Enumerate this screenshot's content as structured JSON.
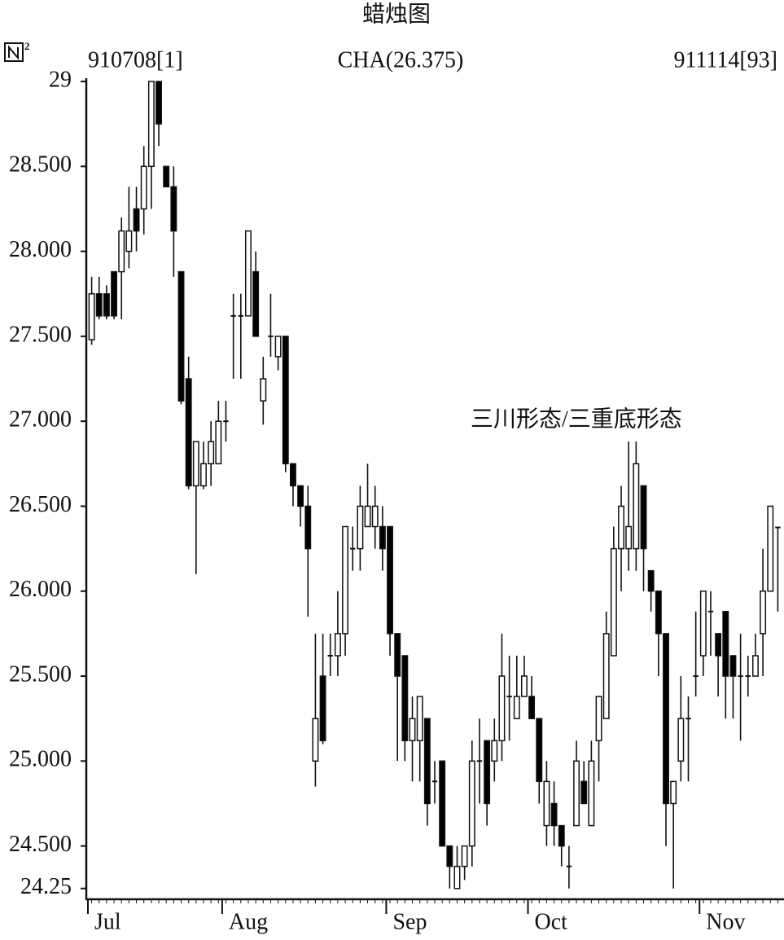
{
  "chart_data": {
    "type": "candlestick",
    "title": "蜡烛图",
    "header_left": "910708[1]",
    "header_center": "CHA(26.375)",
    "header_right": "911114[93]",
    "annotation": "三川形态/三重底形态",
    "categories": [
      "Jul",
      null,
      null,
      null,
      null,
      null,
      null,
      null,
      null,
      null,
      null,
      null,
      null,
      null,
      null,
      null,
      null,
      null,
      "Aug",
      null,
      null,
      null,
      null,
      null,
      null,
      null,
      null,
      null,
      null,
      null,
      null,
      null,
      null,
      null,
      null,
      null,
      null,
      null,
      null,
      null,
      "Sep",
      null,
      null,
      null,
      null,
      null,
      null,
      null,
      null,
      null,
      null,
      null,
      null,
      null,
      null,
      null,
      null,
      null,
      null,
      "Oct",
      null,
      null,
      null,
      null,
      null,
      null,
      null,
      null,
      null,
      null,
      null,
      null,
      null,
      null,
      null,
      null,
      null,
      null,
      null,
      null,
      null,
      null,
      "Nov",
      null,
      null,
      null,
      null,
      null,
      null,
      null,
      null,
      null,
      null
    ],
    "series": [
      {
        "open": [
          27.48,
          27.75,
          27.75,
          27.88,
          27.88,
          28.0,
          28.25,
          28.25,
          28.5,
          29.0,
          28.5,
          28.38,
          27.88,
          27.25,
          26.62,
          26.62,
          26.75,
          26.75,
          27.0,
          27.62,
          27.62,
          27.62,
          27.88,
          27.12,
          27.5,
          27.38,
          27.5,
          26.75,
          26.62,
          26.5,
          25.0,
          25.5,
          25.62,
          25.62,
          25.75,
          26.25,
          26.25,
          26.38,
          26.38,
          26.38,
          26.38,
          25.75,
          25.62,
          25.12,
          25.12,
          25.25,
          24.88,
          25.0,
          24.5,
          24.25,
          24.38,
          24.5,
          25.0,
          25.12,
          25.0,
          25.12,
          25.38,
          25.25,
          25.38,
          25.38,
          25.25,
          24.62,
          24.75,
          24.62,
          24.38,
          24.62,
          24.88,
          24.62,
          25.12,
          25.25,
          25.62,
          26.25,
          26.25,
          26.25,
          26.62,
          26.12,
          26.0,
          25.75,
          24.75,
          25.0,
          25.25,
          25.5,
          25.62,
          25.88,
          25.75,
          25.88,
          25.62,
          25.5,
          25.5,
          25.5,
          25.75,
          26.0,
          26.375
        ],
        "high": [
          27.85,
          27.85,
          27.8,
          27.88,
          28.2,
          28.38,
          28.38,
          28.62,
          29.0,
          29.0,
          28.5,
          28.5,
          27.88,
          27.38,
          26.88,
          26.88,
          27.0,
          27.12,
          27.12,
          27.75,
          27.75,
          28.12,
          28.0,
          27.38,
          27.75,
          27.5,
          27.5,
          26.75,
          26.62,
          26.62,
          25.75,
          25.75,
          25.75,
          26.0,
          26.38,
          26.38,
          26.62,
          26.75,
          26.62,
          26.5,
          26.38,
          25.75,
          25.62,
          25.38,
          25.38,
          25.25,
          25.0,
          25.0,
          24.5,
          24.5,
          24.5,
          25.12,
          25.25,
          25.12,
          25.25,
          25.75,
          25.62,
          25.62,
          25.62,
          25.5,
          25.25,
          25.0,
          24.88,
          24.62,
          24.5,
          25.12,
          25.0,
          25.12,
          25.38,
          25.88,
          26.38,
          26.62,
          26.88,
          26.88,
          26.62,
          26.12,
          26.0,
          25.75,
          24.88,
          25.5,
          25.38,
          25.88,
          26.0,
          26.0,
          25.75,
          25.88,
          25.62,
          25.75,
          25.62,
          25.75,
          26.25,
          26.5,
          26.375
        ],
        "low": [
          27.45,
          27.6,
          27.6,
          27.6,
          27.6,
          27.9,
          28.0,
          28.1,
          28.25,
          28.62,
          28.38,
          27.85,
          27.1,
          26.6,
          26.1,
          26.6,
          26.62,
          26.75,
          26.88,
          27.25,
          27.25,
          27.62,
          27.5,
          26.98,
          27.38,
          27.3,
          26.7,
          26.5,
          26.38,
          25.85,
          24.85,
          25.1,
          25.5,
          25.5,
          25.62,
          26.12,
          26.12,
          26.38,
          26.25,
          26.12,
          25.62,
          25.0,
          25.0,
          24.88,
          24.88,
          24.62,
          24.75,
          24.5,
          24.25,
          24.25,
          24.3,
          24.38,
          24.75,
          24.62,
          24.88,
          25.0,
          25.12,
          25.25,
          25.38,
          25.25,
          24.75,
          24.5,
          24.5,
          24.38,
          24.25,
          24.62,
          24.75,
          24.62,
          24.88,
          25.25,
          25.62,
          26.0,
          26.12,
          26.12,
          26.0,
          25.88,
          25.5,
          24.5,
          24.25,
          24.88,
          24.88,
          25.38,
          25.5,
          25.62,
          25.38,
          25.25,
          25.25,
          25.12,
          25.38,
          25.5,
          25.5,
          26.0,
          25.88
        ],
        "close": [
          27.75,
          27.62,
          27.62,
          27.62,
          28.12,
          28.12,
          28.12,
          28.5,
          29.0,
          28.75,
          28.38,
          28.12,
          27.12,
          26.62,
          26.88,
          26.75,
          26.88,
          27.0,
          27.0,
          27.62,
          27.62,
          28.12,
          27.5,
          27.25,
          27.5,
          27.5,
          26.75,
          26.62,
          26.5,
          26.25,
          25.25,
          25.12,
          25.62,
          25.75,
          26.38,
          26.25,
          26.5,
          26.5,
          26.5,
          26.25,
          25.75,
          25.5,
          25.12,
          25.25,
          25.38,
          24.75,
          24.88,
          24.5,
          24.38,
          24.38,
          24.5,
          25.0,
          25.0,
          24.75,
          25.12,
          25.5,
          25.38,
          25.38,
          25.5,
          25.25,
          24.88,
          24.88,
          24.62,
          24.5,
          24.38,
          25.0,
          24.75,
          25.0,
          25.38,
          25.75,
          26.25,
          26.5,
          26.38,
          26.75,
          26.25,
          26.0,
          25.75,
          24.75,
          24.88,
          25.25,
          25.25,
          25.5,
          26.0,
          25.88,
          25.62,
          25.5,
          25.5,
          25.5,
          25.5,
          25.62,
          26.0,
          26.5,
          26.375
        ],
        "up_color": "#ffffff",
        "down_color": "#000000"
      }
    ],
    "ylim": [
      24.22,
      29
    ],
    "yticks": [
      24.25,
      {
        "value": 24.5,
        "label": "24.500"
      },
      {
        "value": 25,
        "label": "25.000"
      },
      {
        "value": 25.5,
        "label": "25.500"
      },
      {
        "value": 26,
        "label": "26.000"
      },
      {
        "value": 26.5,
        "label": "26.500"
      },
      {
        "value": 27,
        "label": "27.000"
      },
      {
        "value": 27.5,
        "label": "27.500"
      },
      {
        "value": 28,
        "label": "28.000"
      },
      {
        "value": 28.5,
        "label": "28.500"
      },
      29
    ],
    "grid": false
  }
}
